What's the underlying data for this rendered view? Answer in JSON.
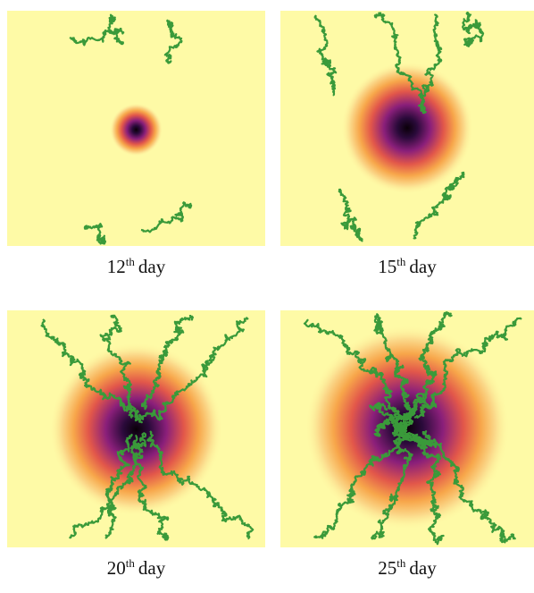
{
  "panels": [
    {
      "caption": {
        "number": "12",
        "suffix": "th",
        "unit": "day"
      }
    },
    {
      "caption": {
        "number": "15",
        "suffix": "th",
        "unit": "day"
      }
    },
    {
      "caption": {
        "number": "20",
        "suffix": "th",
        "unit": "day"
      }
    },
    {
      "caption": {
        "number": "25",
        "suffix": "th",
        "unit": "day"
      }
    }
  ]
}
